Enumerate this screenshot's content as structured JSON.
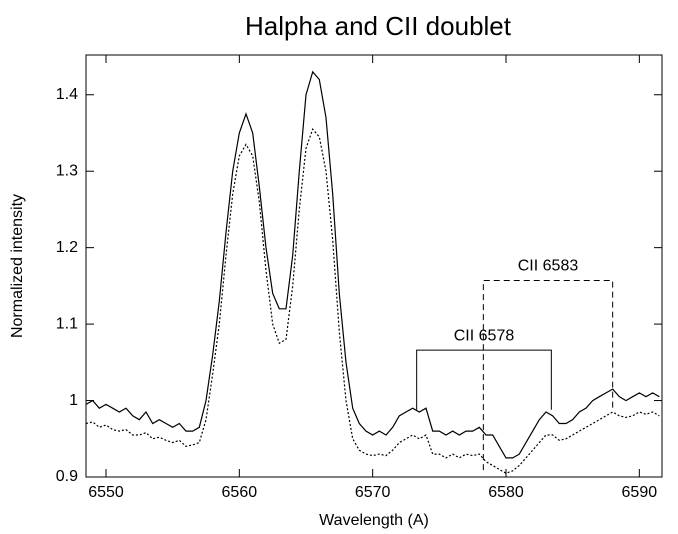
{
  "chart_data": {
    "type": "line",
    "title": "Halpha and CII doublet",
    "xlabel": "Wavelength (A)",
    "ylabel": "Normalized intensity",
    "x": [
      6548.5,
      6549,
      6549.5,
      6550,
      6550.5,
      6551,
      6551.5,
      6552,
      6552.5,
      6553,
      6553.5,
      6554,
      6554.5,
      6555,
      6555.5,
      6556,
      6556.5,
      6557,
      6557.5,
      6558,
      6558.5,
      6559,
      6559.5,
      6560,
      6560.5,
      6561,
      6561.5,
      6562,
      6562.5,
      6563,
      6563.5,
      6564,
      6564.5,
      6565,
      6565.5,
      6566,
      6566.5,
      6567,
      6567.5,
      6568,
      6568.5,
      6569,
      6569.5,
      6570,
      6570.5,
      6571,
      6571.5,
      6572,
      6572.5,
      6573,
      6573.5,
      6574,
      6574.5,
      6575,
      6575.5,
      6576,
      6576.5,
      6577,
      6577.5,
      6578,
      6578.5,
      6579,
      6579.5,
      6580,
      6580.5,
      6581,
      6581.5,
      6582,
      6582.5,
      6583,
      6583.5,
      6584,
      6584.5,
      6585,
      6585.5,
      6586,
      6586.5,
      6587,
      6587.5,
      6588,
      6588.5,
      6589,
      6589.5,
      6590,
      6590.5,
      6591,
      6591.5
    ],
    "series": [
      {
        "color": "#000000",
        "style": "solid",
        "values": [
          0.995,
          1.0,
          0.99,
          0.995,
          0.99,
          0.985,
          0.99,
          0.98,
          0.975,
          0.985,
          0.97,
          0.975,
          0.97,
          0.965,
          0.97,
          0.96,
          0.96,
          0.965,
          1.0,
          1.06,
          1.13,
          1.22,
          1.3,
          1.35,
          1.375,
          1.35,
          1.28,
          1.2,
          1.14,
          1.12,
          1.12,
          1.19,
          1.3,
          1.4,
          1.43,
          1.42,
          1.37,
          1.27,
          1.14,
          1.05,
          0.99,
          0.97,
          0.96,
          0.955,
          0.96,
          0.955,
          0.965,
          0.98,
          0.985,
          0.99,
          0.985,
          0.99,
          0.96,
          0.96,
          0.955,
          0.96,
          0.955,
          0.96,
          0.96,
          0.965,
          0.955,
          0.955,
          0.94,
          0.925,
          0.925,
          0.93,
          0.945,
          0.96,
          0.975,
          0.985,
          0.98,
          0.97,
          0.97,
          0.975,
          0.985,
          0.99,
          1.0,
          1.005,
          1.01,
          1.015,
          1.005,
          1.0,
          1.005,
          1.01,
          1.005,
          1.01,
          1.005
        ]
      },
      {
        "color": "#000000",
        "style": "dotted",
        "values": [
          0.97,
          0.972,
          0.965,
          0.968,
          0.962,
          0.96,
          0.962,
          0.955,
          0.955,
          0.958,
          0.95,
          0.952,
          0.948,
          0.945,
          0.948,
          0.94,
          0.942,
          0.945,
          0.975,
          1.035,
          1.1,
          1.19,
          1.27,
          1.32,
          1.335,
          1.32,
          1.26,
          1.17,
          1.1,
          1.075,
          1.08,
          1.15,
          1.25,
          1.33,
          1.355,
          1.345,
          1.3,
          1.21,
          1.09,
          1.0,
          0.95,
          0.935,
          0.93,
          0.928,
          0.93,
          0.928,
          0.935,
          0.945,
          0.95,
          0.955,
          0.95,
          0.955,
          0.93,
          0.93,
          0.925,
          0.93,
          0.925,
          0.93,
          0.928,
          0.93,
          0.92,
          0.915,
          0.91,
          0.905,
          0.908,
          0.915,
          0.925,
          0.935,
          0.945,
          0.955,
          0.955,
          0.948,
          0.95,
          0.955,
          0.96,
          0.965,
          0.97,
          0.975,
          0.98,
          0.985,
          0.98,
          0.978,
          0.98,
          0.985,
          0.982,
          0.985,
          0.98
        ]
      }
    ],
    "xlim": [
      6548.5,
      6591.7
    ],
    "ylim": [
      0.9,
      1.452
    ],
    "xticks": [
      6550,
      6560,
      6570,
      6580,
      6590
    ],
    "yticks": [
      0.9,
      1,
      1.1,
      1.2,
      1.3,
      1.4
    ],
    "annotations": [
      {
        "text": "CII 6578",
        "style": "solid",
        "x": [
          6573.3,
          6583.4
        ],
        "y": 1.066,
        "ends": [
          0.988,
          0.988
        ]
      },
      {
        "text": "CII 6583",
        "style": "dashed",
        "x": [
          6578.3,
          6588.0
        ],
        "y": 1.157,
        "ends": [
          0.909,
          0.99
        ]
      }
    ]
  }
}
